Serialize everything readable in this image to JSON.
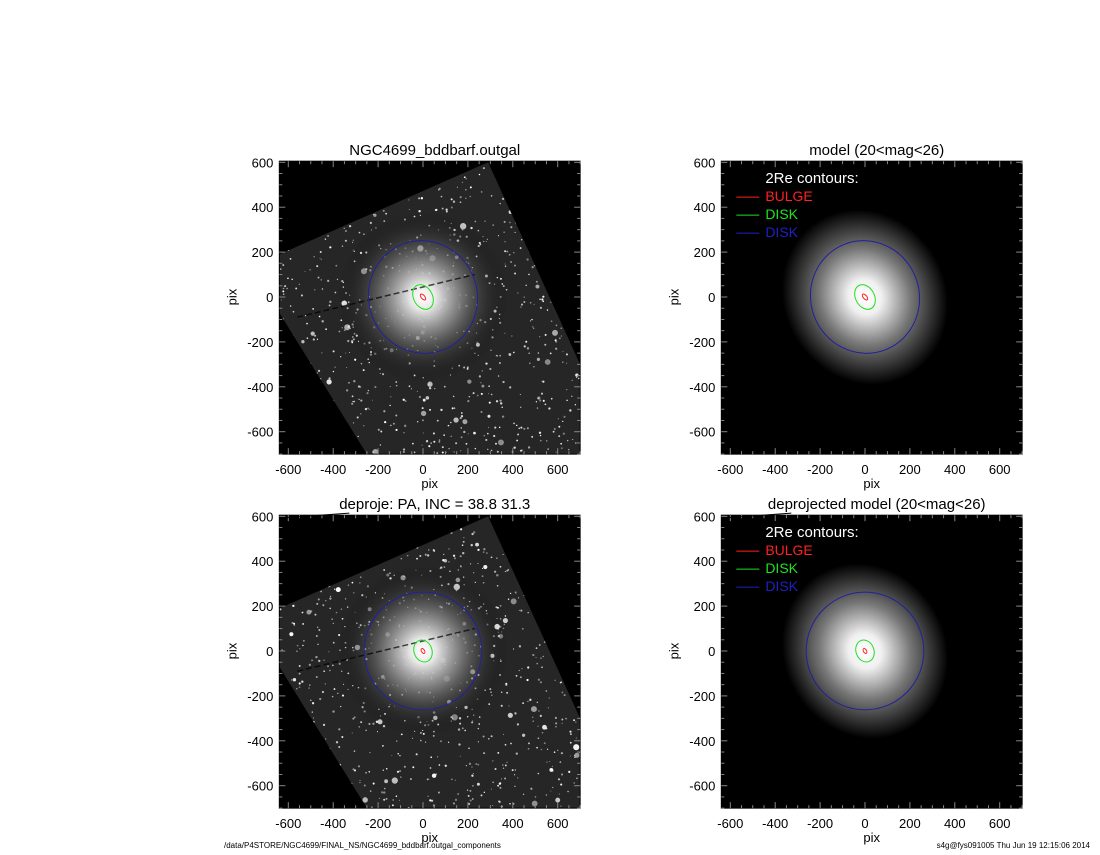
{
  "chart_data": [
    {
      "type": "heatmap",
      "kind": "observed",
      "title": "NGC4699_bddbarf.outgal",
      "xlabel": "pix",
      "ylabel": "pix",
      "xlim": [
        -640,
        700
      ],
      "ylim": [
        -700,
        605
      ],
      "xticks": [
        "-600",
        "-400",
        "-200",
        "0",
        "200",
        "400",
        "600"
      ],
      "yticks": [
        "600",
        "400",
        "200",
        "0",
        "-200",
        "-400",
        "-600"
      ],
      "contours": [
        {
          "component": "BULGE",
          "color": "#ff2020",
          "rx": 8,
          "ry": 16,
          "angle": -40
        },
        {
          "component": "DISK",
          "color": "#20e020",
          "rx": 42,
          "ry": 58,
          "angle": -28
        },
        {
          "component": "DISK",
          "color": "#2020a0",
          "rx": 242,
          "ry": 252,
          "angle": -20
        }
      ]
    },
    {
      "type": "heatmap",
      "kind": "model",
      "title": "model (20<mag<26)",
      "xlabel": "pix",
      "ylabel": "pix",
      "xlim": [
        -640,
        700
      ],
      "ylim": [
        -700,
        605
      ],
      "xticks": [
        "-600",
        "-400",
        "-200",
        "0",
        "200",
        "400",
        "600"
      ],
      "yticks": [
        "600",
        "400",
        "200",
        "0",
        "-200",
        "-400",
        "-600"
      ],
      "legend": {
        "title": "2Re contours:",
        "entries": [
          {
            "label": "BULGE",
            "color": "#ff2020"
          },
          {
            "label": "DISK",
            "color": "#20e020"
          },
          {
            "label": "DISK",
            "color": "#2020c0"
          }
        ],
        "placement": "top-left"
      },
      "contours": [
        {
          "component": "BULGE",
          "color": "#ff2020",
          "rx": 8,
          "ry": 16,
          "angle": -40
        },
        {
          "component": "DISK",
          "color": "#20e020",
          "rx": 42,
          "ry": 58,
          "angle": -28
        },
        {
          "component": "DISK",
          "color": "#2020a0",
          "rx": 242,
          "ry": 252,
          "angle": -20
        }
      ]
    },
    {
      "type": "heatmap",
      "kind": "observed",
      "title": "deproje: PA, INC =  38.8    31.3",
      "xlabel": "pix",
      "ylabel": "pix",
      "xlim": [
        -640,
        700
      ],
      "ylim": [
        -700,
        605
      ],
      "xticks": [
        "-600",
        "-400",
        "-200",
        "0",
        "200",
        "400",
        "600"
      ],
      "yticks": [
        "600",
        "400",
        "200",
        "0",
        "-200",
        "-400",
        "-600"
      ],
      "contours": [
        {
          "component": "BULGE",
          "color": "#ff2020",
          "rx": 7,
          "ry": 12,
          "angle": -30
        },
        {
          "component": "DISK",
          "color": "#20e020",
          "rx": 40,
          "ry": 50,
          "angle": -20
        },
        {
          "component": "DISK",
          "color": "#2020a0",
          "rx": 262,
          "ry": 262,
          "angle": 0
        }
      ]
    },
    {
      "type": "heatmap",
      "kind": "model",
      "title": "deprojected model (20<mag<26)",
      "xlabel": "pix",
      "ylabel": "pix",
      "xlim": [
        -640,
        700
      ],
      "ylim": [
        -700,
        605
      ],
      "xticks": [
        "-600",
        "-400",
        "-200",
        "0",
        "200",
        "400",
        "600"
      ],
      "yticks": [
        "600",
        "400",
        "200",
        "0",
        "-200",
        "-400",
        "-600"
      ],
      "legend": {
        "title": "2Re contours:",
        "entries": [
          {
            "label": "BULGE",
            "color": "#ff2020"
          },
          {
            "label": "DISK",
            "color": "#20e020"
          },
          {
            "label": "DISK",
            "color": "#2020c0"
          }
        ],
        "placement": "top-left"
      },
      "contours": [
        {
          "component": "BULGE",
          "color": "#ff2020",
          "rx": 7,
          "ry": 12,
          "angle": -30
        },
        {
          "component": "DISK",
          "color": "#20e020",
          "rx": 40,
          "ry": 50,
          "angle": -20
        },
        {
          "component": "DISK",
          "color": "#2020a0",
          "rx": 262,
          "ry": 262,
          "angle": 0
        }
      ]
    }
  ],
  "footer": {
    "path": "/data/P4STORE/NGC4699/FINAL_NS/NGC4699_bddbarf.outgal_components",
    "stamp": "s4g@fys091005  Thu Jun 19 12:15:06 2014"
  }
}
